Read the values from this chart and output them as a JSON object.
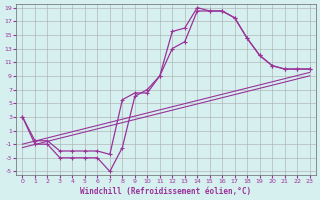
{
  "xlabel": "Windchill (Refroidissement éolien,°C)",
  "bg_color": "#d6f0f0",
  "line_color": "#993399",
  "grid_color": "#aaaaaa",
  "xlim": [
    -0.5,
    23.5
  ],
  "ylim": [
    -5.5,
    19.5
  ],
  "xticks": [
    0,
    1,
    2,
    3,
    4,
    5,
    6,
    7,
    8,
    9,
    10,
    11,
    12,
    13,
    14,
    15,
    16,
    17,
    18,
    19,
    20,
    21,
    22,
    23
  ],
  "yticks": [
    -5,
    -3,
    -1,
    1,
    3,
    5,
    7,
    9,
    11,
    13,
    15,
    17,
    19
  ],
  "curve1_x": [
    0,
    1,
    2,
    3,
    4,
    5,
    6,
    7,
    8,
    9,
    10,
    11,
    12,
    13,
    14,
    15,
    16,
    17,
    18,
    19,
    20,
    21,
    22,
    23
  ],
  "curve1_y": [
    3,
    -1,
    -1,
    -3,
    -3,
    -3,
    -3,
    -5,
    -1.5,
    6,
    7,
    9,
    15.5,
    16,
    19,
    18.5,
    18.5,
    17.5,
    14.5,
    12,
    10.5,
    10,
    10,
    10
  ],
  "curve2_x": [
    0,
    1,
    2,
    3,
    4,
    5,
    6,
    7,
    8,
    9,
    10,
    11,
    12,
    13,
    14,
    15,
    16,
    17,
    18,
    19,
    20,
    21,
    22,
    23
  ],
  "curve2_y": [
    3,
    -0.5,
    -0.5,
    -2,
    -2,
    -2,
    -2,
    -2.5,
    5.5,
    6.5,
    6.5,
    9,
    13,
    14,
    18.5,
    18.5,
    18.5,
    17.5,
    14.5,
    12,
    10.5,
    10,
    10,
    10
  ],
  "line1_x": [
    0,
    23
  ],
  "line1_y": [
    -1.0,
    9.5
  ],
  "line2_x": [
    0,
    23
  ],
  "line2_y": [
    -1.5,
    9.0
  ]
}
